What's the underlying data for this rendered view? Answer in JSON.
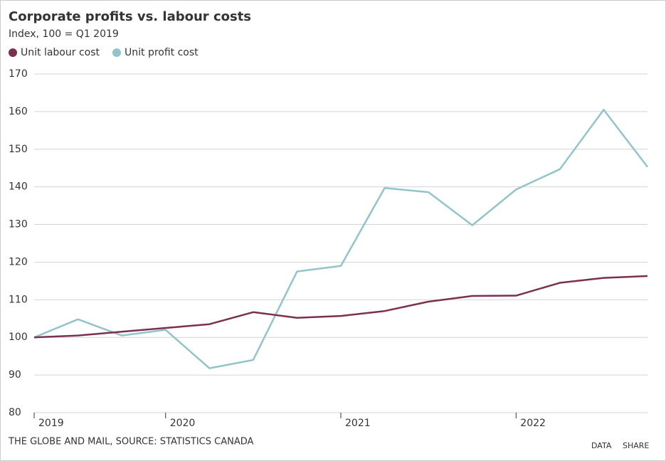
{
  "chart_data": {
    "type": "line",
    "title": "Corporate profits vs. labour costs",
    "subtitle": "Index, 100 = Q1 2019",
    "categories": [
      "2019",
      null,
      null,
      "2020",
      null,
      null,
      null,
      "2021",
      null,
      null,
      null,
      "2022",
      null,
      null,
      null
    ],
    "series": [
      {
        "name": "Unit labour cost",
        "color": "#7b3050",
        "values": [
          100,
          100.5,
          101.5,
          102.5,
          103.5,
          106.7,
          105.2,
          105.7,
          107,
          109.5,
          111,
          111.1,
          114.5,
          115.8,
          116.3
        ]
      },
      {
        "name": "Unit profit cost",
        "color": "#93c4c9",
        "values": [
          100,
          104.8,
          100.5,
          102,
          91.8,
          94,
          117.5,
          119,
          139.7,
          138.6,
          129.8,
          139.3,
          144.7,
          160.5,
          145.3
        ]
      }
    ],
    "ylim": [
      80,
      170
    ],
    "yticks": [
      80,
      90,
      100,
      110,
      120,
      130,
      140,
      150,
      160,
      170
    ],
    "grid": true
  },
  "footer": {
    "source": "THE GLOBE AND MAIL, SOURCE: STATISTICS CANADA",
    "links": [
      "DATA",
      "SHARE"
    ]
  }
}
